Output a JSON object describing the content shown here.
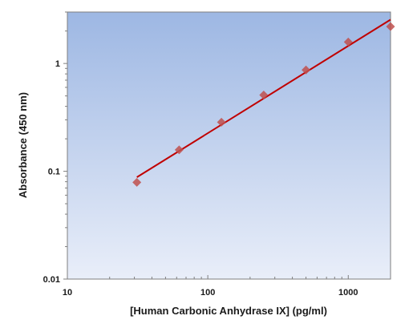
{
  "chart_data": {
    "type": "scatter",
    "title": "",
    "xlabel": "[Human Carbonic Anhydrase IX] (pg/ml)",
    "ylabel": "Absorbance (450 nm)",
    "x_scale": "log",
    "y_scale": "log",
    "xlim": [
      10,
      2000
    ],
    "ylim": [
      0.01,
      3
    ],
    "x_ticks": [
      10,
      100,
      1000
    ],
    "x_tick_labels": [
      "10",
      "100",
      "1000"
    ],
    "y_ticks": [
      0.01,
      0.1,
      1
    ],
    "y_tick_labels": [
      "0.01",
      "0.1",
      "1"
    ],
    "grid": false,
    "legend": "none",
    "series": [
      {
        "marker": "diamond",
        "color": "#c0504d",
        "x": [
          31.25,
          62.5,
          125,
          250,
          500,
          1000,
          2000
        ],
        "y": [
          0.079,
          0.158,
          0.285,
          0.51,
          0.87,
          1.58,
          2.2
        ]
      }
    ],
    "fit_line": {
      "type": "linear-log-log",
      "color": "#c00000",
      "x": [
        31.25,
        2000
      ],
      "y": [
        0.088,
        2.55
      ]
    },
    "background_gradient": [
      "#9db7e3",
      "#e9eef9"
    ]
  }
}
